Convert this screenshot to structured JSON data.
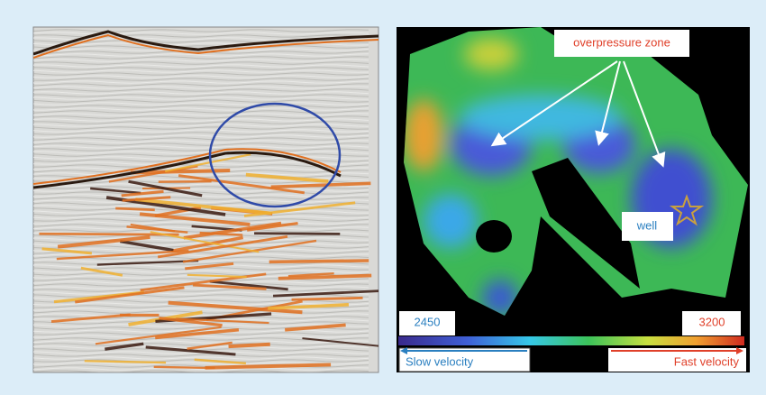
{
  "figure": {
    "annotations": {
      "overpressure": "overpressure zone",
      "well": "well"
    },
    "colorbar": {
      "min": 2450,
      "max": 3200,
      "slow_label": "Slow velocity",
      "fast_label": "Fast velocity"
    }
  }
}
